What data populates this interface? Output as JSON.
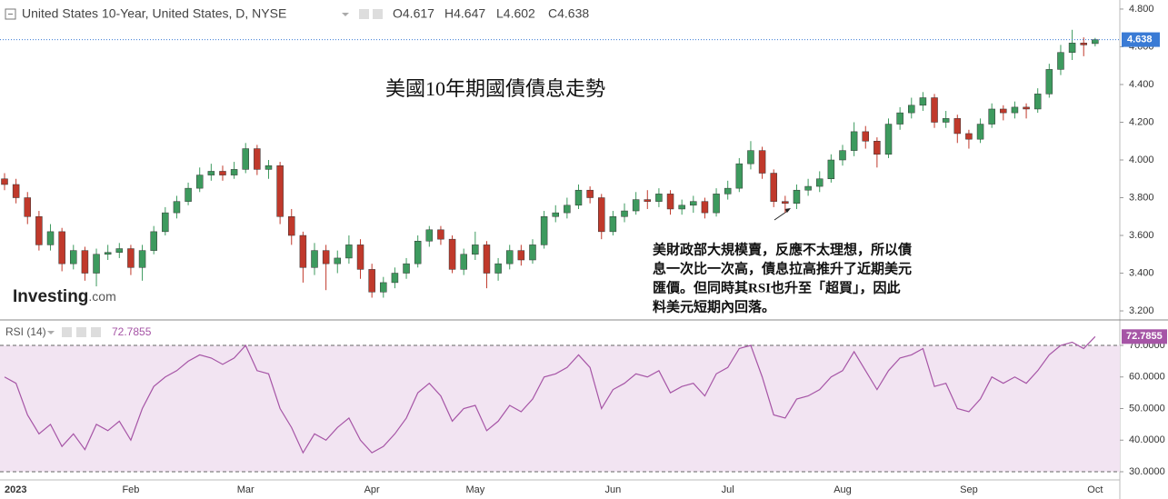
{
  "chart_data": [
    {
      "type": "candlestick",
      "header": {
        "symbol": "United States 10-Year, United States, D, NYSE",
        "ohlc": [
          "O4.617",
          "H4.647",
          "L4.602",
          "C4.638"
        ]
      },
      "title": "美國10年期國債債息走勢",
      "annotation": [
        "美財政部大規模賣，反應不太理想，所以債",
        "息一次比一次高，債息拉高推升了近期美元",
        "匯價。但同時其RSI也升至「超買」，因此",
        "料美元短期內回落。"
      ],
      "logo": [
        "Investing",
        ".com"
      ],
      "categories": [
        "2023",
        null,
        null,
        null,
        null,
        null,
        null,
        null,
        null,
        null,
        null,
        "Feb",
        null,
        null,
        null,
        null,
        null,
        null,
        null,
        null,
        null,
        "Mar",
        null,
        null,
        null,
        null,
        null,
        null,
        null,
        null,
        null,
        null,
        "Apr",
        null,
        null,
        null,
        null,
        null,
        null,
        null,
        null,
        "May",
        null,
        null,
        null,
        null,
        null,
        null,
        null,
        null,
        null,
        null,
        null,
        "Jun",
        null,
        null,
        null,
        null,
        null,
        null,
        null,
        null,
        null,
        "Jul",
        null,
        null,
        null,
        null,
        null,
        null,
        null,
        null,
        null,
        "Aug",
        null,
        null,
        null,
        null,
        null,
        null,
        null,
        null,
        null,
        null,
        "Sep",
        null,
        null,
        null,
        null,
        null,
        null,
        null,
        null,
        null,
        null,
        "Oct"
      ],
      "open": [
        3.9,
        3.87,
        3.8,
        3.7,
        3.55,
        3.62,
        3.45,
        3.52,
        3.4,
        3.5,
        3.51,
        3.53,
        3.43,
        3.52,
        3.62,
        3.72,
        3.78,
        3.85,
        3.92,
        3.94,
        3.92,
        3.95,
        4.06,
        3.95,
        3.97,
        3.7,
        3.6,
        3.43,
        3.52,
        3.45,
        3.48,
        3.55,
        3.42,
        3.3,
        3.35,
        3.4,
        3.45,
        3.57,
        3.63,
        3.58,
        3.42,
        3.5,
        3.55,
        3.4,
        3.45,
        3.52,
        3.47,
        3.55,
        3.7,
        3.72,
        3.76,
        3.84,
        3.8,
        3.62,
        3.7,
        3.73,
        3.79,
        3.78,
        3.82,
        3.74,
        3.76,
        3.78,
        3.72,
        3.82,
        3.85,
        3.98,
        4.05,
        3.93,
        3.78,
        3.77,
        3.84,
        3.86,
        3.9,
        4.0,
        4.05,
        4.15,
        4.1,
        4.03,
        4.19,
        4.25,
        4.29,
        4.33,
        4.2,
        4.22,
        4.14,
        4.11,
        4.19,
        4.27,
        4.25,
        4.28,
        4.27,
        4.35,
        4.48,
        4.57,
        4.62,
        4.617
      ],
      "high": [
        3.93,
        3.9,
        3.83,
        3.73,
        3.66,
        3.64,
        3.55,
        3.54,
        3.53,
        3.55,
        3.56,
        3.55,
        3.55,
        3.65,
        3.75,
        3.81,
        3.88,
        3.96,
        3.98,
        3.97,
        3.99,
        4.09,
        4.08,
        4.0,
        3.99,
        3.74,
        3.62,
        3.56,
        3.55,
        3.52,
        3.6,
        3.58,
        3.45,
        3.38,
        3.43,
        3.48,
        3.6,
        3.65,
        3.65,
        3.6,
        3.53,
        3.62,
        3.57,
        3.48,
        3.55,
        3.55,
        3.58,
        3.73,
        3.76,
        3.8,
        3.87,
        3.86,
        3.82,
        3.73,
        3.77,
        3.83,
        3.84,
        3.85,
        3.84,
        3.79,
        3.81,
        3.8,
        3.85,
        3.89,
        4.01,
        4.1,
        4.07,
        3.95,
        3.81,
        3.87,
        3.9,
        3.94,
        4.03,
        4.08,
        4.2,
        4.18,
        4.12,
        4.22,
        4.28,
        4.33,
        4.36,
        4.35,
        4.26,
        4.24,
        4.16,
        4.22,
        4.3,
        4.29,
        4.31,
        4.3,
        4.38,
        4.51,
        4.61,
        4.69,
        4.65,
        4.647
      ],
      "low": [
        3.84,
        3.77,
        3.66,
        3.52,
        3.52,
        3.41,
        3.42,
        3.36,
        3.33,
        3.47,
        3.48,
        3.39,
        3.36,
        3.5,
        3.6,
        3.69,
        3.76,
        3.83,
        3.89,
        3.89,
        3.9,
        3.93,
        3.92,
        3.9,
        3.66,
        3.55,
        3.35,
        3.39,
        3.31,
        3.4,
        3.45,
        3.37,
        3.27,
        3.27,
        3.32,
        3.37,
        3.43,
        3.54,
        3.55,
        3.4,
        3.39,
        3.47,
        3.32,
        3.36,
        3.42,
        3.44,
        3.45,
        3.53,
        3.67,
        3.69,
        3.74,
        3.77,
        3.58,
        3.6,
        3.67,
        3.71,
        3.74,
        3.75,
        3.71,
        3.71,
        3.72,
        3.69,
        3.7,
        3.79,
        3.83,
        3.95,
        3.9,
        3.75,
        3.72,
        3.74,
        3.81,
        3.83,
        3.88,
        3.97,
        4.02,
        4.06,
        3.96,
        4.01,
        4.16,
        4.22,
        4.26,
        4.17,
        4.17,
        4.09,
        4.06,
        4.09,
        4.17,
        4.21,
        4.22,
        4.22,
        4.25,
        4.33,
        4.45,
        4.53,
        4.55,
        4.602
      ],
      "close": [
        3.87,
        3.8,
        3.7,
        3.55,
        3.62,
        3.45,
        3.52,
        3.4,
        3.5,
        3.51,
        3.53,
        3.43,
        3.52,
        3.62,
        3.72,
        3.78,
        3.85,
        3.92,
        3.94,
        3.92,
        3.95,
        4.06,
        3.95,
        3.97,
        3.7,
        3.6,
        3.43,
        3.52,
        3.45,
        3.48,
        3.55,
        3.42,
        3.3,
        3.35,
        3.4,
        3.45,
        3.57,
        3.63,
        3.58,
        3.42,
        3.5,
        3.55,
        3.4,
        3.45,
        3.52,
        3.47,
        3.55,
        3.7,
        3.72,
        3.76,
        3.84,
        3.8,
        3.62,
        3.7,
        3.73,
        3.79,
        3.78,
        3.82,
        3.74,
        3.76,
        3.78,
        3.72,
        3.82,
        3.85,
        3.98,
        4.05,
        3.93,
        3.78,
        3.77,
        3.84,
        3.86,
        3.9,
        4.0,
        4.05,
        4.15,
        4.1,
        4.03,
        4.19,
        4.25,
        4.29,
        4.33,
        4.2,
        4.22,
        4.14,
        4.11,
        4.19,
        4.27,
        4.25,
        4.28,
        4.27,
        4.35,
        4.48,
        4.57,
        4.62,
        4.61,
        4.638
      ],
      "up_color": "#3d9a5e",
      "down_color": "#c0392b",
      "last_color": "#3a7bd5",
      "ylim": [
        3.152,
        4.848
      ],
      "yticks": [
        {
          "value": 3.2,
          "label": "3.200"
        },
        {
          "value": 3.4,
          "label": "3.400"
        },
        {
          "value": 3.6,
          "label": "3.600"
        },
        {
          "value": 3.8,
          "label": "3.800"
        },
        {
          "value": 4.0,
          "label": "4.000"
        },
        {
          "value": 4.2,
          "label": "4.200"
        },
        {
          "value": 4.4,
          "label": "4.400"
        },
        {
          "value": 4.6,
          "label": "4.600"
        },
        {
          "value": 4.8,
          "label": "4.800"
        }
      ]
    },
    {
      "type": "line",
      "title": "RSI (14)",
      "color": "#a655a6",
      "band_color": "#f2e4f2",
      "band": [
        30,
        70
      ],
      "values": [
        60,
        58,
        48,
        42,
        45,
        38,
        42,
        37,
        45,
        43,
        46,
        40,
        50,
        57,
        60,
        62,
        65,
        67,
        66,
        64,
        66,
        70,
        62,
        61,
        50,
        44,
        36,
        42,
        40,
        44,
        47,
        40,
        36,
        38,
        42,
        47,
        55,
        58,
        54,
        46,
        50,
        51,
        43,
        46,
        51,
        49,
        53,
        60,
        61,
        63,
        67,
        63,
        50,
        56,
        58,
        61,
        60,
        62,
        55,
        57,
        58,
        54,
        61,
        63,
        69,
        70,
        60,
        48,
        47,
        53,
        54,
        56,
        60,
        62,
        68,
        62,
        56,
        62,
        66,
        67,
        69,
        57,
        58,
        50,
        49,
        53,
        60,
        58,
        60,
        58,
        62,
        67,
        70,
        71,
        69,
        72.7855
      ],
      "ylim": [
        27.41,
        76.33
      ],
      "yticks": [
        {
          "value": 30,
          "label": "30.0000"
        },
        {
          "value": 40,
          "label": "40.0000"
        },
        {
          "value": 50,
          "label": "50.0000"
        },
        {
          "value": 60,
          "label": "60.0000"
        },
        {
          "value": 70,
          "label": "70.0000"
        }
      ]
    }
  ]
}
